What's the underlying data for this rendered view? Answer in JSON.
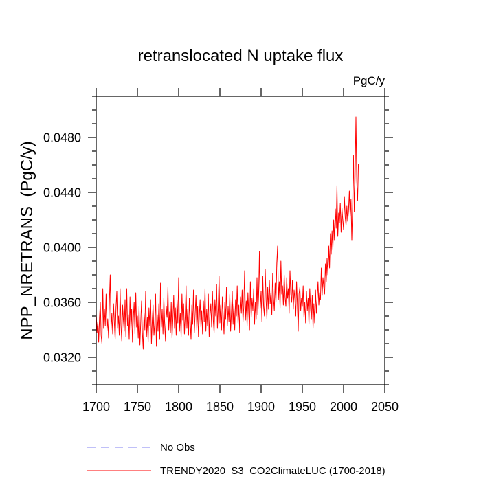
{
  "chart_data": {
    "type": "line",
    "title": "retranslocated N uptake flux",
    "units_label": "PgC/y",
    "xlabel": "",
    "ylabel": "NPP_NRETRANS  (PgC/y)",
    "xlim": [
      1700,
      2050
    ],
    "ylim": [
      0.03,
      0.051
    ],
    "xticks": [
      1700,
      1750,
      1800,
      1850,
      1900,
      1950,
      2000,
      2050
    ],
    "xtick_labels": [
      "1700",
      "1750",
      "1800",
      "1850",
      "1900",
      "1950",
      "2000",
      "2050"
    ],
    "yticks": [
      0.032,
      0.036,
      0.04,
      0.044,
      0.048
    ],
    "ytick_labels": [
      "0.0320",
      "0.0360",
      "0.0400",
      "0.0440",
      "0.0480"
    ],
    "yminor_step": 0.001,
    "grid": false,
    "legend": {
      "position": "bottom"
    },
    "series": [
      {
        "name": "No Obs",
        "color": "#8080f0",
        "dashed": true,
        "x_start": 1700,
        "x_step": 1,
        "values": []
      },
      {
        "name": "TRENDY2020_S3_CO2ClimateLUC (1700-2018)",
        "color": "#ff0000",
        "dashed": false,
        "x_start": 1700,
        "x_step": 1,
        "values": [
          0.0352,
          0.0338,
          0.0346,
          0.0331,
          0.0349,
          0.036,
          0.0336,
          0.033,
          0.037,
          0.0341,
          0.0355,
          0.0343,
          0.0366,
          0.0339,
          0.0348,
          0.0334,
          0.0361,
          0.038,
          0.034,
          0.0352,
          0.0337,
          0.0359,
          0.0345,
          0.0333,
          0.0356,
          0.0368,
          0.0341,
          0.035,
          0.0336,
          0.037,
          0.0344,
          0.0332,
          0.0358,
          0.0347,
          0.0339,
          0.0362,
          0.0335,
          0.037,
          0.0343,
          0.0351,
          0.0333,
          0.0364,
          0.034,
          0.0355,
          0.0331,
          0.0348,
          0.036,
          0.0337,
          0.0367,
          0.0342,
          0.035,
          0.0334,
          0.0357,
          0.0329,
          0.0345,
          0.0361,
          0.0338,
          0.0326,
          0.0352,
          0.034,
          0.0368,
          0.0335,
          0.0349,
          0.0331,
          0.0356,
          0.0343,
          0.0362,
          0.033,
          0.0347,
          0.0358,
          0.0336,
          0.0344,
          0.0366,
          0.0328,
          0.0351,
          0.0339,
          0.0359,
          0.0333,
          0.0374,
          0.0342,
          0.0355,
          0.0337,
          0.0363,
          0.0345,
          0.0332,
          0.0357,
          0.0349,
          0.0371,
          0.034,
          0.0353,
          0.0338,
          0.036,
          0.0334,
          0.0348,
          0.0365,
          0.0341,
          0.0356,
          0.0336,
          0.0362,
          0.0345,
          0.0378,
          0.0339,
          0.0352,
          0.0335,
          0.0366,
          0.0347,
          0.0359,
          0.0337,
          0.035,
          0.0372,
          0.0341,
          0.0355,
          0.0336,
          0.0363,
          0.0346,
          0.0333,
          0.0358,
          0.0344,
          0.0369,
          0.0338,
          0.0352,
          0.0365,
          0.034,
          0.0357,
          0.0335,
          0.0349,
          0.0362,
          0.0342,
          0.0354,
          0.0337,
          0.0361,
          0.0346,
          0.037,
          0.0339,
          0.0355,
          0.0343,
          0.0366,
          0.0335,
          0.0351,
          0.0359,
          0.0342,
          0.0368,
          0.0347,
          0.0338,
          0.0362,
          0.035,
          0.0373,
          0.0341,
          0.0356,
          0.0379,
          0.0345,
          0.0358,
          0.034,
          0.0364,
          0.0351,
          0.0337,
          0.036,
          0.0348,
          0.0371,
          0.0343,
          0.0357,
          0.0346,
          0.0366,
          0.0339,
          0.0353,
          0.0368,
          0.0344,
          0.0359,
          0.034,
          0.0362,
          0.035,
          0.0372,
          0.0345,
          0.0358,
          0.0338,
          0.0364,
          0.0352,
          0.0369,
          0.0346,
          0.0357,
          0.0383,
          0.0347,
          0.0361,
          0.0343,
          0.0367,
          0.0352,
          0.034,
          0.0375,
          0.0349,
          0.0363,
          0.0354,
          0.037,
          0.0344,
          0.036,
          0.0348,
          0.0378,
          0.0351,
          0.0365,
          0.0397,
          0.0356,
          0.0368,
          0.0346,
          0.0379,
          0.0357,
          0.035,
          0.0384,
          0.0362,
          0.0348,
          0.0371,
          0.0355,
          0.0376,
          0.0359,
          0.0367,
          0.0351,
          0.0381,
          0.0363,
          0.0354,
          0.0374,
          0.036,
          0.0388,
          0.0401,
          0.0362,
          0.0375,
          0.0356,
          0.039,
          0.0366,
          0.0372,
          0.0358,
          0.038,
          0.0364,
          0.0357,
          0.0378,
          0.0363,
          0.037,
          0.0352,
          0.0383,
          0.0366,
          0.036,
          0.0376,
          0.0355,
          0.0369,
          0.0362,
          0.035,
          0.0375,
          0.0358,
          0.0339,
          0.0366,
          0.0371,
          0.0354,
          0.0363,
          0.0357,
          0.0372,
          0.0349,
          0.036,
          0.0345,
          0.0368,
          0.0354,
          0.0363,
          0.0344,
          0.037,
          0.0355,
          0.0348,
          0.0365,
          0.0341,
          0.0359,
          0.0345,
          0.0369,
          0.0352,
          0.0363,
          0.0375,
          0.0358,
          0.0367,
          0.0362,
          0.0385,
          0.0365,
          0.0378,
          0.0371,
          0.0366,
          0.0388,
          0.0375,
          0.0392,
          0.038,
          0.0401,
          0.0385,
          0.041,
          0.0395,
          0.0412,
          0.0398,
          0.042,
          0.0405,
          0.0428,
          0.0414,
          0.0445,
          0.0408,
          0.0425,
          0.0418,
          0.0432,
          0.0411,
          0.0429,
          0.042,
          0.0413,
          0.0437,
          0.0422,
          0.0416,
          0.043,
          0.0419,
          0.0426,
          0.0441,
          0.0423,
          0.0435,
          0.0405,
          0.0431,
          0.0467,
          0.0426,
          0.0452,
          0.0495,
          0.0448,
          0.0434,
          0.0461
        ]
      }
    ]
  }
}
